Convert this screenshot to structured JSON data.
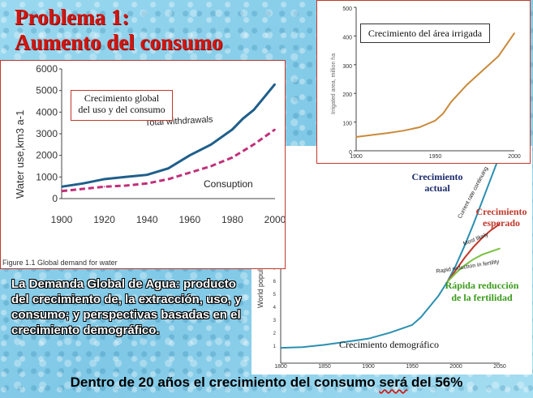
{
  "slide": {
    "title_line1": "Problema 1:",
    "title_line2": "Aumento del consumo",
    "body_text": "La Demanda Global de Agua: producto del crecimiento de, la extracción, uso, y consumo; y perspectivas basadas en el crecimiento demográfico.",
    "footer_pre": "Dentro de 20 años el crecimiento del consumo ",
    "footer_u1": "será",
    "footer_mid": " del 56%",
    "colors": {
      "title": "#d4150f",
      "panel_border": "#c0392b"
    }
  },
  "panels": {
    "water_use": {
      "label": "Crecimiento global del uso y del consumo",
      "label_line1": "Crecimiento global",
      "label_line2": "del uso y del consumo",
      "caption": "Figure 1.1 Global demand for water",
      "series_label_total": "Total withdrawals",
      "series_label_consumption": "Consuption"
    },
    "irrigated": {
      "label": "Crecimiento del área irrigada"
    },
    "population": {
      "label_actual_1": "Crecimiento",
      "label_actual_2": "actual",
      "label_expected_1": "Crecimiento",
      "label_expected_2": "esperado",
      "label_fertility_1": "Rápida reducción",
      "label_fertility_2": "de la fertilidad",
      "label_demographic": "Crecimiento demográfico",
      "line_label_current": "Current rate continuing",
      "line_label_most": "Most likely",
      "line_label_rapid": "Rapid reduction in fertility",
      "axis_partial": "World popul"
    }
  },
  "chart_data": [
    {
      "type": "line",
      "title": "Figure 1.1 Global demand for water",
      "xlabel": "",
      "ylabel": "Water use,km3 a-1",
      "xlim": [
        1900,
        2000
      ],
      "ylim": [
        0,
        6000
      ],
      "x_ticks": [
        "1900",
        "1920",
        "1940",
        "1960",
        "1980",
        "2000"
      ],
      "y_ticks": [
        "0",
        "1000",
        "2000",
        "3000",
        "4000",
        "5000",
        "6000"
      ],
      "series": [
        {
          "name": "Total withdrawals",
          "x": [
            1900,
            1910,
            1920,
            1930,
            1940,
            1950,
            1960,
            1970,
            1980,
            1985,
            1990,
            1995,
            2000
          ],
          "values": [
            550,
            700,
            900,
            1000,
            1100,
            1400,
            2000,
            2500,
            3200,
            3700,
            4100,
            4700,
            5300
          ],
          "color": "#1f5f8b"
        },
        {
          "name": "Consuption",
          "x": [
            1900,
            1910,
            1920,
            1930,
            1940,
            1950,
            1960,
            1970,
            1980,
            1990,
            2000
          ],
          "values": [
            350,
            450,
            550,
            600,
            700,
            900,
            1200,
            1500,
            1900,
            2500,
            3200
          ],
          "color": "#c0307a"
        }
      ]
    },
    {
      "type": "line",
      "title": "",
      "xlabel": "",
      "ylabel": "Irrigated area, million ha",
      "xlim": [
        1900,
        2000
      ],
      "ylim": [
        0,
        500
      ],
      "x_ticks": [
        "1900",
        "1950",
        "2000"
      ],
      "y_ticks": [
        "0",
        "100",
        "200",
        "300",
        "400",
        "500"
      ],
      "series": [
        {
          "name": "",
          "x": [
            1900,
            1910,
            1920,
            1930,
            1940,
            1950,
            1955,
            1960,
            1970,
            1980,
            1990,
            2000
          ],
          "values": [
            48,
            55,
            62,
            70,
            82,
            105,
            130,
            170,
            230,
            280,
            330,
            410
          ],
          "color": "#c98a3a"
        }
      ]
    },
    {
      "type": "line",
      "title": "",
      "xlabel": "",
      "ylabel": "World popul",
      "xlim": [
        1800,
        2050
      ],
      "ylim": [
        0,
        14
      ],
      "x_ticks": [
        "1800",
        "1850",
        "1900",
        "1950",
        "2000",
        "2050"
      ],
      "y_ticks": [
        "7",
        "6",
        "5",
        "4",
        "3",
        "2",
        "1"
      ],
      "series": [
        {
          "name": "Current rate continuing",
          "x": [
            1990,
            2000,
            2010,
            2020,
            2030,
            2040,
            2050
          ],
          "values": [
            5.3,
            6.4,
            7.7,
            9.1,
            10.6,
            12.1,
            13.6
          ],
          "color": "#2a8fb0"
        },
        {
          "name": "Most likely",
          "x": [
            1990,
            2000,
            2010,
            2020,
            2030,
            2040,
            2050
          ],
          "values": [
            5.3,
            6.1,
            6.9,
            7.6,
            8.2,
            8.7,
            9.1
          ],
          "color": "#c0392b"
        },
        {
          "name": "Rapid reduction in fertility",
          "x": [
            1990,
            2000,
            2010,
            2020,
            2030,
            2040,
            2050
          ],
          "values": [
            5.3,
            5.9,
            6.4,
            6.8,
            7.1,
            7.3,
            7.5
          ],
          "color": "#7ac142"
        },
        {
          "name": "",
          "x": [
            1800,
            1825,
            1850,
            1875,
            1900,
            1925,
            1950,
            1960,
            1970,
            1980,
            1990
          ],
          "values": [
            1.0,
            1.05,
            1.2,
            1.4,
            1.6,
            2.0,
            2.5,
            3.0,
            3.7,
            4.4,
            5.3
          ],
          "color": "#2a8fb0"
        }
      ]
    }
  ]
}
